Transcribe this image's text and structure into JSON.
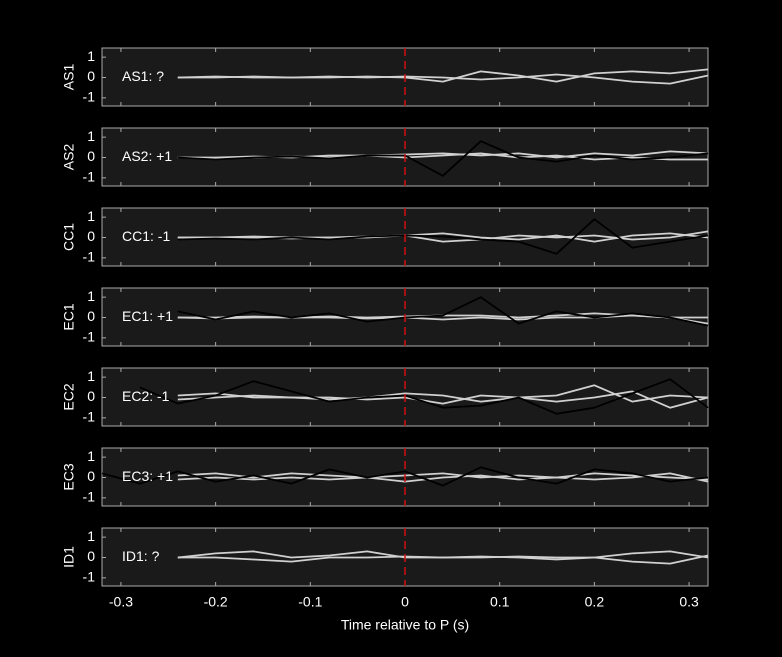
{
  "chart_data": [
    {
      "type": "line",
      "ylabel": "AS1",
      "annotation": "AS1: ?",
      "annotation_color": "#8c8c8c",
      "marker_x": 0,
      "marker_color": "#d01010",
      "xlim": [
        -0.32,
        0.32
      ],
      "xticks": [
        -0.3,
        -0.2,
        -0.1,
        0,
        0.1,
        0.2,
        0.3
      ],
      "ylim": [
        -1.4,
        1.45
      ],
      "yticks": [
        -1,
        0,
        1
      ],
      "x": [
        -0.32,
        -0.28,
        -0.24,
        -0.2,
        -0.16,
        -0.12,
        -0.08,
        -0.04,
        0,
        0.04,
        0.08,
        0.12,
        0.16,
        0.2,
        0.24,
        0.28,
        0.32
      ],
      "series": [
        {
          "color": "#d0d0d0",
          "values": [
            null,
            null,
            0,
            0,
            0.05,
            0,
            0,
            0.05,
            0,
            -0.2,
            0.3,
            0.1,
            -0.2,
            0.2,
            0.3,
            0.2,
            0.4
          ]
        },
        {
          "color": "#d0d0d0",
          "values": [
            null,
            null,
            0,
            0.05,
            0,
            0,
            0.05,
            0,
            0.05,
            0,
            -0.1,
            0,
            0.15,
            0,
            -0.2,
            -0.3,
            0.1
          ]
        }
      ]
    },
    {
      "type": "line",
      "ylabel": "AS2",
      "annotation": "AS2: +1",
      "annotation_color": "#c81010",
      "marker_x": 0,
      "marker_color": "#d01010",
      "xlim": [
        -0.32,
        0.32
      ],
      "xticks": [
        -0.3,
        -0.2,
        -0.1,
        0,
        0.1,
        0.2,
        0.3
      ],
      "ylim": [
        -1.4,
        1.45
      ],
      "yticks": [
        -1,
        0,
        1
      ],
      "x": [
        -0.32,
        -0.28,
        -0.24,
        -0.2,
        -0.16,
        -0.12,
        -0.08,
        -0.04,
        0,
        0.04,
        0.08,
        0.12,
        0.16,
        0.2,
        0.24,
        0.28,
        0.32
      ],
      "series": [
        {
          "color": "#d0d0d0",
          "values": [
            null,
            null,
            0,
            0,
            0.05,
            0,
            0.1,
            0.1,
            0.15,
            0.2,
            0.1,
            0.2,
            0,
            0.2,
            0.1,
            0.3,
            0.2
          ]
        },
        {
          "color": "#d0d0d0",
          "values": [
            null,
            null,
            0,
            -0.05,
            0,
            0.05,
            0,
            0.1,
            0,
            0.1,
            0.2,
            0,
            0.1,
            -0.1,
            0,
            -0.1,
            -0.1
          ]
        },
        {
          "color": "#000000",
          "values": [
            null,
            null,
            0,
            -0.1,
            0,
            0.05,
            -0.05,
            0.1,
            0.1,
            -0.9,
            0.8,
            0,
            -0.2,
            0.1,
            -0.1,
            0,
            0.2
          ]
        }
      ]
    },
    {
      "type": "line",
      "ylabel": "CC1",
      "annotation": "CC1: -1",
      "annotation_color": "#1010c0",
      "marker_x": 0,
      "marker_color": "#d01010",
      "xlim": [
        -0.32,
        0.32
      ],
      "xticks": [
        -0.3,
        -0.2,
        -0.1,
        0,
        0.1,
        0.2,
        0.3
      ],
      "ylim": [
        -1.4,
        1.45
      ],
      "yticks": [
        -1,
        0,
        1
      ],
      "x": [
        -0.32,
        -0.28,
        -0.24,
        -0.2,
        -0.16,
        -0.12,
        -0.08,
        -0.04,
        0,
        0.04,
        0.08,
        0.12,
        0.16,
        0.2,
        0.24,
        0.28,
        0.32
      ],
      "series": [
        {
          "color": "#d0d0d0",
          "values": [
            null,
            null,
            0,
            0,
            0.05,
            0,
            0,
            0.05,
            0.1,
            -0.2,
            -0.1,
            0.1,
            0,
            0.1,
            -0.1,
            0,
            0.3
          ]
        },
        {
          "color": "#d0d0d0",
          "values": [
            null,
            null,
            0,
            0,
            0,
            -0.05,
            0,
            0,
            0.1,
            0.2,
            0,
            -0.1,
            0.1,
            -0.2,
            0.1,
            0.2,
            0
          ]
        },
        {
          "color": "#000000",
          "values": [
            null,
            null,
            -0.1,
            -0.05,
            -0.1,
            0,
            -0.1,
            0.05,
            0.1,
            0.05,
            -0.1,
            -0.2,
            -0.8,
            0.9,
            -0.5,
            -0.2,
            0.1
          ]
        }
      ]
    },
    {
      "type": "line",
      "ylabel": "EC1",
      "annotation": "EC1: +1",
      "annotation_color": "#c81010",
      "marker_x": 0,
      "marker_color": "#d01010",
      "xlim": [
        -0.32,
        0.32
      ],
      "xticks": [
        -0.3,
        -0.2,
        -0.1,
        0,
        0.1,
        0.2,
        0.3
      ],
      "ylim": [
        -1.4,
        1.45
      ],
      "yticks": [
        -1,
        0,
        1
      ],
      "x": [
        -0.32,
        -0.28,
        -0.24,
        -0.2,
        -0.16,
        -0.12,
        -0.08,
        -0.04,
        0,
        0.04,
        0.08,
        0.12,
        0.16,
        0.2,
        0.24,
        0.28,
        0.32
      ],
      "series": [
        {
          "color": "#d0d0d0",
          "values": [
            null,
            null,
            0,
            0,
            0.05,
            0,
            0.05,
            0,
            0.05,
            0.1,
            0.1,
            0,
            0.1,
            0.2,
            0.1,
            0,
            -0.3
          ]
        },
        {
          "color": "#d0d0d0",
          "values": [
            null,
            null,
            0,
            -0.05,
            0,
            0,
            0,
            -0.05,
            0,
            -0.1,
            0,
            -0.1,
            0,
            0,
            0.1,
            0,
            0
          ]
        },
        {
          "color": "#000000",
          "values": [
            null,
            null,
            0.3,
            -0.1,
            0.3,
            0,
            0.2,
            -0.2,
            0,
            0.1,
            1.0,
            -0.3,
            0.3,
            0,
            0.2,
            0,
            -0.4
          ]
        }
      ]
    },
    {
      "type": "line",
      "ylabel": "EC2",
      "annotation": "EC2: -1",
      "annotation_color": "#1010c0",
      "marker_x": 0,
      "marker_color": "#d01010",
      "xlim": [
        -0.32,
        0.32
      ],
      "xticks": [
        -0.3,
        -0.2,
        -0.1,
        0,
        0.1,
        0.2,
        0.3
      ],
      "ylim": [
        -1.4,
        1.45
      ],
      "yticks": [
        -1,
        0,
        1
      ],
      "x": [
        -0.32,
        -0.28,
        -0.24,
        -0.2,
        -0.16,
        -0.12,
        -0.08,
        -0.04,
        0,
        0.04,
        0.08,
        0.12,
        0.16,
        0.2,
        0.24,
        0.28,
        0.32
      ],
      "series": [
        {
          "color": "#d0d0d0",
          "values": [
            null,
            null,
            0.1,
            0.2,
            0,
            0,
            -0.1,
            0,
            0.2,
            0.1,
            -0.2,
            0,
            0.1,
            0.6,
            -0.2,
            0.1,
            0
          ]
        },
        {
          "color": "#d0d0d0",
          "values": [
            null,
            null,
            -0.1,
            0,
            0.1,
            0,
            0,
            -0.1,
            0,
            -0.3,
            0.1,
            0,
            -0.2,
            0,
            0.3,
            -0.5,
            0
          ]
        },
        {
          "color": "#000000",
          "values": [
            null,
            0.5,
            -0.3,
            0.1,
            0.8,
            0.3,
            -0.2,
            0,
            0.1,
            -0.5,
            -0.4,
            0,
            -0.8,
            -0.5,
            0.2,
            0.9,
            -0.5
          ]
        }
      ]
    },
    {
      "type": "line",
      "ylabel": "EC3",
      "annotation": "EC3: +1",
      "annotation_color": "#c81010",
      "marker_x": 0,
      "marker_color": "#d01010",
      "xlim": [
        -0.32,
        0.32
      ],
      "xticks": [
        -0.3,
        -0.2,
        -0.1,
        0,
        0.1,
        0.2,
        0.3
      ],
      "ylim": [
        -1.4,
        1.45
      ],
      "yticks": [
        -1,
        0,
        1
      ],
      "x": [
        -0.32,
        -0.28,
        -0.24,
        -0.2,
        -0.16,
        -0.12,
        -0.08,
        -0.04,
        0,
        0.04,
        0.08,
        0.12,
        0.16,
        0.2,
        0.24,
        0.28,
        0.32
      ],
      "series": [
        {
          "color": "#d0d0d0",
          "values": [
            null,
            null,
            0.1,
            0.2,
            0,
            0.2,
            0.1,
            0,
            0.1,
            0.2,
            0,
            0.1,
            0,
            0.2,
            0.1,
            0,
            -0.1
          ]
        },
        {
          "color": "#d0d0d0",
          "values": [
            null,
            null,
            -0.1,
            0,
            -0.1,
            0,
            -0.1,
            0,
            -0.2,
            0,
            0.1,
            -0.1,
            0,
            -0.1,
            0,
            0.2,
            -0.2
          ]
        },
        {
          "color": "#000000",
          "values": [
            0.2,
            -0.3,
            0.3,
            -0.2,
            0.1,
            -0.3,
            0.4,
            0,
            0.3,
            -0.4,
            0.5,
            0,
            -0.3,
            0.4,
            0.2,
            -0.2,
            0
          ]
        }
      ]
    },
    {
      "type": "line",
      "ylabel": "ID1",
      "annotation": "ID1: ?",
      "annotation_color": "#8c8c8c",
      "marker_x": 0,
      "marker_color": "#d01010",
      "xlim": [
        -0.32,
        0.32
      ],
      "xticks": [
        -0.3,
        -0.2,
        -0.1,
        0,
        0.1,
        0.2,
        0.3
      ],
      "ylim": [
        -1.4,
        1.45
      ],
      "yticks": [
        -1,
        0,
        1
      ],
      "xlabel": "Time relative to P (s)",
      "x": [
        -0.32,
        -0.28,
        -0.24,
        -0.2,
        -0.16,
        -0.12,
        -0.08,
        -0.04,
        0,
        0.04,
        0.08,
        0.12,
        0.16,
        0.2,
        0.24,
        0.28,
        0.32
      ],
      "series": [
        {
          "color": "#d0d0d0",
          "values": [
            null,
            null,
            0,
            0.2,
            0.3,
            0,
            0.1,
            0.3,
            0,
            0,
            0.05,
            0,
            -0.1,
            0,
            0.2,
            0.3,
            0
          ]
        },
        {
          "color": "#d0d0d0",
          "values": [
            null,
            null,
            0,
            0,
            -0.1,
            -0.2,
            0,
            0,
            0.05,
            0,
            0,
            0.05,
            0,
            0,
            -0.2,
            -0.3,
            0.1
          ]
        }
      ]
    }
  ]
}
